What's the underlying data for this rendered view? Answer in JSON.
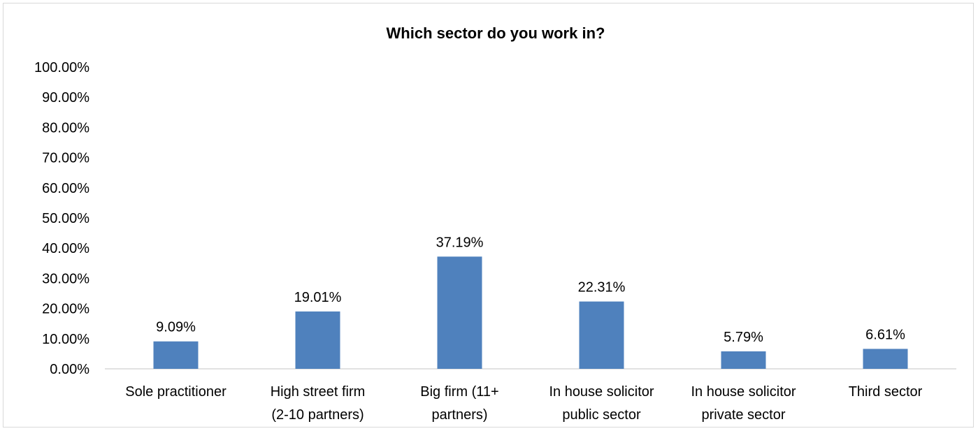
{
  "chart_data": {
    "type": "bar",
    "title": "Which sector do you work in?",
    "xlabel": "",
    "ylabel": "",
    "categories": [
      [
        "Sole practitioner"
      ],
      [
        "High street firm",
        "(2-10 partners)"
      ],
      [
        "Big firm (11+",
        "partners)"
      ],
      [
        "In house solicitor",
        "public sector"
      ],
      [
        "In house solicitor",
        "private sector"
      ],
      [
        "Third sector"
      ]
    ],
    "values": [
      9.09,
      19.01,
      37.19,
      22.31,
      5.79,
      6.61
    ],
    "value_labels": [
      "9.09%",
      "19.01%",
      "37.19%",
      "22.31%",
      "5.79%",
      "6.61%"
    ],
    "ylim": [
      0,
      100
    ],
    "yticks": [
      0,
      10,
      20,
      30,
      40,
      50,
      60,
      70,
      80,
      90,
      100
    ],
    "ytick_labels": [
      "0.00%",
      "10.00%",
      "20.00%",
      "30.00%",
      "40.00%",
      "50.00%",
      "60.00%",
      "70.00%",
      "80.00%",
      "90.00%",
      "100.00%"
    ],
    "grid": false,
    "legend": "none",
    "bar_color": "#4f81bd",
    "axis_color": "#d9d9d9"
  }
}
